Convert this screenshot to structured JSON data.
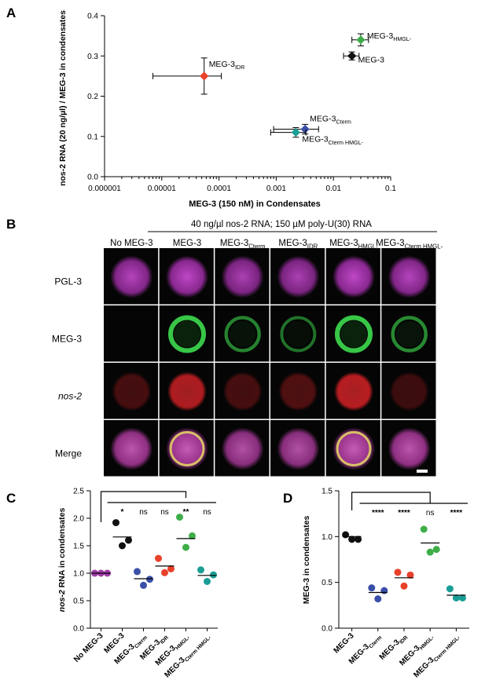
{
  "panels": {
    "a": "A",
    "b": "B",
    "c": "C",
    "d": "D"
  },
  "chart_data": [
    {
      "type": "scatter",
      "panel": "A",
      "xlabel": "MEG-3 (150 nM) in Condensates",
      "ylabel": "nos-2 RNA (20 ng/µl) / MEG-3 in condensates",
      "xscale": "log",
      "xlim": [
        1e-06,
        0.1
      ],
      "ylim": [
        0,
        0.4
      ],
      "xticks": [
        1e-06,
        1e-05,
        0.0001,
        0.001,
        0.01,
        0.1
      ],
      "xtick_labels": [
        "0.000001",
        "0.00001",
        "0.0001",
        "0.001",
        "0.01",
        "0.1"
      ],
      "yticks": [
        0,
        0.1,
        0.2,
        0.3,
        0.4
      ],
      "ytick_labels": [
        "0.0",
        "0.1",
        "0.2",
        "0.3",
        "0.4"
      ],
      "points": [
        {
          "label": "MEG-3",
          "sub": "IDR",
          "x": 5.5e-05,
          "y": 0.25,
          "xerr": [
            7e-06,
            0.00011
          ],
          "yerr": 0.045,
          "color": "#e8402a"
        },
        {
          "label": "MEG-3",
          "sub": "HMGL-",
          "x": 0.03,
          "y": 0.34,
          "xerr": [
            0.021,
            0.041
          ],
          "yerr": 0.015,
          "color": "#3fae49"
        },
        {
          "label": "MEG-3",
          "sub": "",
          "x": 0.021,
          "y": 0.3,
          "xerr": [
            0.015,
            0.028
          ],
          "yerr": 0.01,
          "color": "#111111"
        },
        {
          "label": "MEG-3",
          "sub": "Cterm",
          "x": 0.0032,
          "y": 0.118,
          "xerr": [
            0.0009,
            0.0055
          ],
          "yerr": 0.012,
          "color": "#3a4fa8"
        },
        {
          "label": "MEG-3",
          "sub": "Cterm HMGL-",
          "x": 0.0022,
          "y": 0.11,
          "xerr": [
            0.0008,
            0.0033
          ],
          "yerr": 0.012,
          "color": "#1a9e96"
        }
      ]
    },
    {
      "type": "scatter",
      "panel": "C",
      "ylabel": "nos-2 RNA in condensates",
      "ylabel_italic": "nos-2",
      "ylabel_rest": " RNA in condensates",
      "ylim": [
        0,
        2.5
      ],
      "yticks": [
        0,
        0.5,
        1.0,
        1.5,
        2.0,
        2.5
      ],
      "ytick_labels": [
        "0.0",
        "0.5",
        "1.0",
        "1.5",
        "2.0",
        "2.5"
      ],
      "categories": [
        {
          "name": "No MEG-3",
          "sub": ""
        },
        {
          "name": "MEG-3",
          "sub": ""
        },
        {
          "name": "MEG-3",
          "sub": "Cterm"
        },
        {
          "name": "MEG-3",
          "sub": "IDR"
        },
        {
          "name": "MEG-3",
          "sub": "HMGL-"
        },
        {
          "name": "MEG-3",
          "sub": "Cterm HMGL-"
        }
      ],
      "colors": [
        "#a03ca8",
        "#111111",
        "#3a4fa8",
        "#e8402a",
        "#3fae49",
        "#1a9e96"
      ],
      "series": [
        {
          "values": [
            1.0,
            1.0,
            1.0
          ],
          "mean": 1.0
        },
        {
          "values": [
            1.92,
            1.5,
            1.6
          ],
          "mean": 1.66
        },
        {
          "values": [
            1.03,
            0.78,
            0.89
          ],
          "mean": 0.9
        },
        {
          "values": [
            1.27,
            1.01,
            1.08
          ],
          "mean": 1.13
        },
        {
          "values": [
            2.02,
            1.47,
            1.68
          ],
          "mean": 1.63
        },
        {
          "values": [
            1.06,
            0.85,
            0.97
          ],
          "mean": 0.96
        }
      ],
      "significance": [
        "",
        "*",
        "ns",
        "ns",
        "**",
        "ns"
      ]
    },
    {
      "type": "scatter",
      "panel": "D",
      "ylabel": "MEG-3 in condensates",
      "ylim": [
        0,
        1.5
      ],
      "yticks": [
        0,
        0.5,
        1.0,
        1.5
      ],
      "ytick_labels": [
        "0.0",
        "0.5",
        "1.0",
        "1.5"
      ],
      "categories": [
        {
          "name": "MEG-3",
          "sub": ""
        },
        {
          "name": "MEG-3",
          "sub": "Cterm"
        },
        {
          "name": "MEG-3",
          "sub": "IDR"
        },
        {
          "name": "MEG-3",
          "sub": "HMGL-"
        },
        {
          "name": "MEG-3",
          "sub": "Cterm HMGL-"
        }
      ],
      "colors": [
        "#111111",
        "#3a4fa8",
        "#e8402a",
        "#3fae49",
        "#1a9e96"
      ],
      "series": [
        {
          "values": [
            1.02,
            0.97,
            0.97
          ],
          "mean": 1.0
        },
        {
          "values": [
            0.44,
            0.32,
            0.41
          ],
          "mean": 0.39
        },
        {
          "values": [
            0.61,
            0.46,
            0.58
          ],
          "mean": 0.55
        },
        {
          "values": [
            1.08,
            0.83,
            0.86
          ],
          "mean": 0.93
        },
        {
          "values": [
            0.43,
            0.33,
            0.33
          ],
          "mean": 0.36
        }
      ],
      "significance": [
        "",
        "****",
        "****",
        "ns",
        "****"
      ]
    }
  ],
  "panel_b": {
    "condition": "40 ng/µl nos-2 RNA; 150 µM poly-U(30) RNA",
    "columns": [
      {
        "name": "No MEG-3",
        "sub": ""
      },
      {
        "name": "MEG-3",
        "sub": ""
      },
      {
        "name": "MEG-3",
        "sub": "Cterm"
      },
      {
        "name": "MEG-3",
        "sub": "IDR"
      },
      {
        "name": "MEG-3",
        "sub": "HMGL-"
      },
      {
        "name": "MEG-3",
        "sub": "Cterm HMGL-"
      }
    ],
    "rows": [
      {
        "label": "PGL-3",
        "color": "#c03cc0",
        "italic": false
      },
      {
        "label": "MEG-3",
        "color": "#2fae3a",
        "italic": false
      },
      {
        "label": "nos-2",
        "color": "#c0282c",
        "italic": true
      },
      {
        "label": "Merge",
        "color": "#000000",
        "italic": false
      }
    ],
    "intensity": {
      "pgl": [
        0.9,
        0.95,
        0.85,
        0.85,
        0.95,
        0.9
      ],
      "meg": [
        0.0,
        1.0,
        0.45,
        0.3,
        1.0,
        0.5
      ],
      "nos": [
        0.35,
        0.9,
        0.35,
        0.4,
        0.95,
        0.3
      ]
    }
  }
}
